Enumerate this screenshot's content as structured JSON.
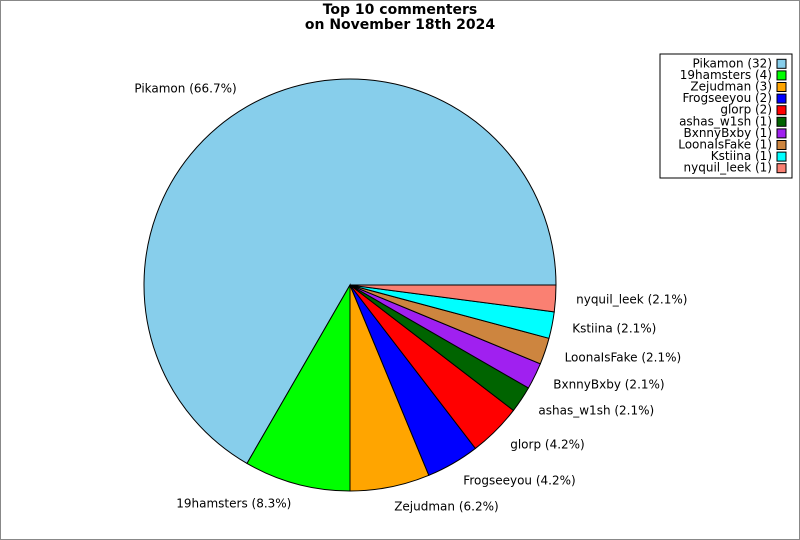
{
  "chart_data": {
    "type": "pie",
    "title": "Top 10 commenters",
    "subtitle": "on November 18th 2024",
    "categories": [
      "Pikamon (32)",
      "19hamsters (4)",
      "Zejudman (3)",
      "Frogseeyou (2)",
      "glorp (2)",
      "ashas_w1sh (1)",
      "BxnnyBxby (1)",
      "LoonaIsFake (1)",
      "Kstiina (1)",
      "nyquil_leek (1)"
    ],
    "values": [
      66.667,
      8.333,
      6.25,
      4.167,
      4.167,
      2.083,
      2.083,
      2.083,
      2.083,
      2.083
    ],
    "value_labels": [
      "Pikamon (66.7%)",
      "19hamsters (8.3%)",
      "Zejudman (6.2%)",
      "Frogseeyou (4.2%)",
      "glorp (4.2%)",
      "ashas_w1sh (2.1%)",
      "BxnnyBxby (2.1%)",
      "LoonaIsFake (2.1%)",
      "Kstiina (2.1%)",
      "nyquil_leek (2.1%)"
    ],
    "colors": [
      "#87ceeb",
      "#00ff00",
      "#ffa500",
      "#0000ff",
      "#ff0000",
      "#006400",
      "#a020f0",
      "#cd853f",
      "#00ffff",
      "#fa8072"
    ],
    "legend": "upper right"
  }
}
